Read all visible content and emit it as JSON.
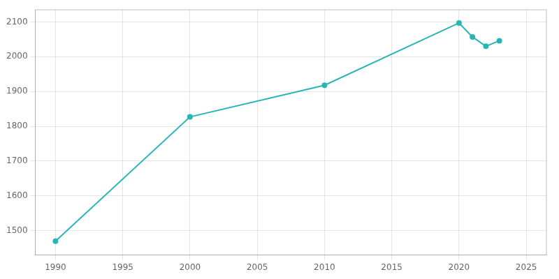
{
  "chart_data": {
    "type": "line",
    "x": [
      1990,
      2000,
      2010,
      2020,
      2021,
      2022,
      2023
    ],
    "series": [
      {
        "color": "#29b5b5",
        "marker": "circle",
        "values": [
          1470,
          1827,
          1918,
          2097,
          2057,
          2030,
          2046
        ]
      }
    ],
    "xlim": [
      1988.5,
      2026.5
    ],
    "ylim": [
      1430,
      2135
    ],
    "xticks": [
      1990,
      1995,
      2000,
      2005,
      2010,
      2015,
      2020,
      2025
    ],
    "yticks": [
      1500,
      1600,
      1700,
      1800,
      1900,
      2000,
      2100
    ],
    "grid": true
  }
}
